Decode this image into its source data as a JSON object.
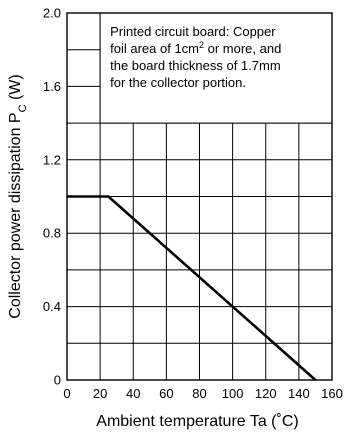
{
  "chart_data": {
    "type": "line",
    "title": "",
    "xlabel": "Ambient temperature   Ta  (˚C)",
    "ylabel": {
      "text": "Collector power dissipation",
      "symbol": "P",
      "subscript": "C",
      "unit": "(W)"
    },
    "xlim": [
      0,
      160
    ],
    "ylim": [
      0,
      2.0
    ],
    "xticks": [
      0,
      20,
      40,
      60,
      80,
      100,
      120,
      140,
      160
    ],
    "yticks": [
      0,
      0.4,
      0.8,
      1.2,
      1.6,
      2.0
    ],
    "xtick_labels": [
      "0",
      "20",
      "40",
      "60",
      "80",
      "100",
      "120",
      "140",
      "160"
    ],
    "ytick_labels": [
      "0",
      "0.4",
      "0.8",
      "1.2",
      "1.6",
      "2.0"
    ],
    "grid": true,
    "series": [
      {
        "x": [
          0,
          25,
          150
        ],
        "y": [
          1.0,
          1.0,
          0
        ]
      }
    ],
    "annotation": {
      "lines": [
        [
          "Printed circuit board: Copper"
        ],
        [
          "foil area of 1cm",
          "2",
          " or more, and"
        ],
        [
          "the board thickness of 1.7mm"
        ],
        [
          "for the collector portion."
        ]
      ]
    }
  }
}
